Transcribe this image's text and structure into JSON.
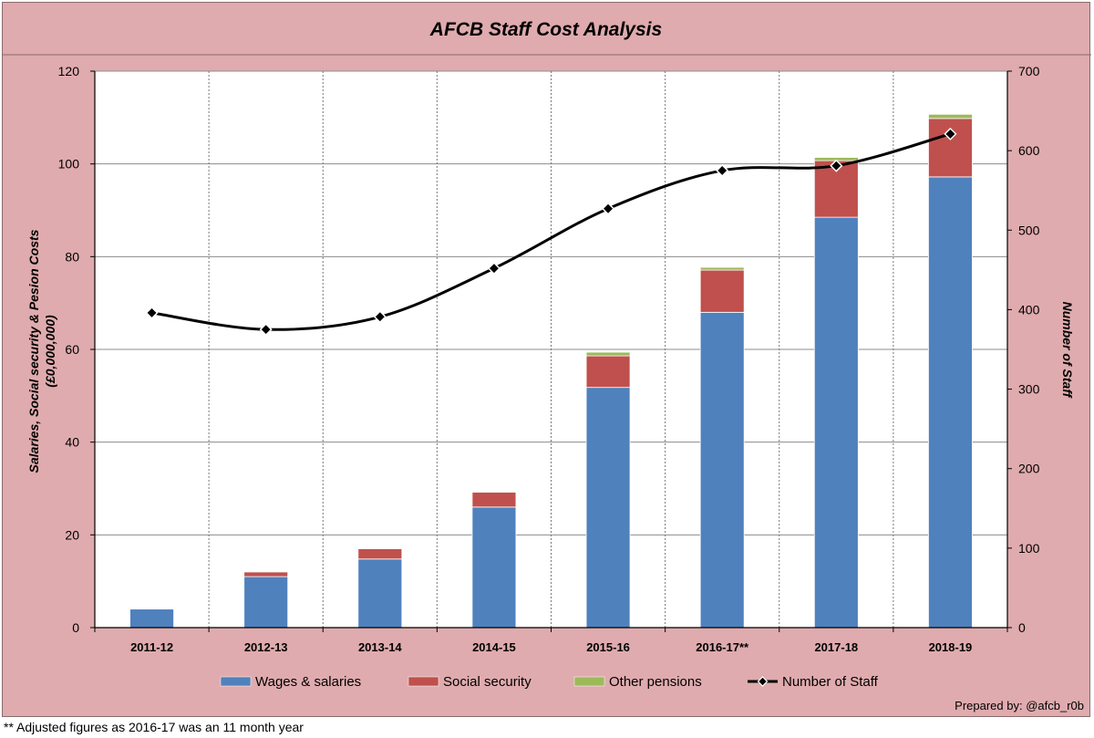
{
  "chart_data": {
    "type": "bar",
    "title": "AFCB Staff Cost Analysis",
    "ylabel": "Salaries, Social security & Pesion Costs",
    "ylabel_unit": "(£0,000,000)",
    "y2label": "Number of Staff",
    "categories": [
      "2011-12",
      "2012-13",
      "2013-14",
      "2014-15",
      "2015-16",
      "2016-17**",
      "2017-18",
      "2018-19"
    ],
    "ylim": [
      0,
      120
    ],
    "y_ticks": [
      0,
      20,
      40,
      60,
      80,
      100,
      120
    ],
    "y2lim": [
      0,
      700
    ],
    "y2_ticks": [
      0,
      100,
      200,
      300,
      400,
      500,
      600,
      700
    ],
    "stacked": true,
    "series": [
      {
        "name": "Wages & salaries",
        "color": "#4f81bd",
        "values": [
          4.0,
          11.0,
          14.8,
          26.0,
          51.8,
          68.0,
          88.5,
          97.2
        ]
      },
      {
        "name": "Social security",
        "color": "#c0504d",
        "values": [
          0,
          1.0,
          2.2,
          3.2,
          6.8,
          9.1,
          12.2,
          12.6
        ]
      },
      {
        "name": "Other pensions",
        "color": "#9bbb59",
        "values": [
          0,
          0,
          0,
          0,
          0.8,
          0.6,
          0.7,
          0.9
        ]
      }
    ],
    "line_series": {
      "name": "Number of Staff",
      "axis": "right",
      "color": "#000000",
      "values": [
        396,
        375,
        391,
        452,
        527,
        575,
        581,
        621
      ]
    },
    "grid": true,
    "legend_position": "bottom"
  },
  "credit": "Prepared by: @afcb_r0b",
  "footnote": "** Adjusted figures as 2016-17 was an 11 month year"
}
